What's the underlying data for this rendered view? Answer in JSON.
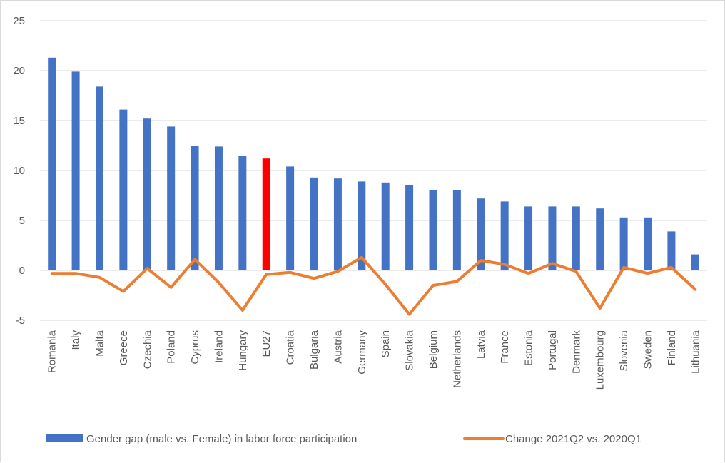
{
  "chart_data": {
    "type": "bar",
    "categories": [
      "Romania",
      "Italy",
      "Malta",
      "Greece",
      "Czechia",
      "Poland",
      "Cyprus",
      "Ireland",
      "Hungary",
      "EU27",
      "Croatia",
      "Bulgaria",
      "Austria",
      "Germany",
      "Spain",
      "Slovakia",
      "Belgium",
      "Netherlands",
      "Latvia",
      "France",
      "Estonia",
      "Portugal",
      "Denmark",
      "Luxembourg",
      "Slovenia",
      "Sweden",
      "Finland",
      "Lithuania"
    ],
    "series": [
      {
        "name": "Gender gap (male vs. Female) in labor force participation",
        "type": "bar",
        "color": "#4472c4",
        "highlight": {
          "category": "EU27",
          "color": "#ff0000"
        },
        "values": [
          21.3,
          19.9,
          18.4,
          16.1,
          15.2,
          14.4,
          12.5,
          12.4,
          11.5,
          11.2,
          10.4,
          9.3,
          9.2,
          8.9,
          8.8,
          8.5,
          8.0,
          8.0,
          7.2,
          6.9,
          6.4,
          6.4,
          6.4,
          6.2,
          5.3,
          5.3,
          3.9,
          1.6
        ]
      },
      {
        "name": "Change 2021Q2 vs. 2020Q1",
        "type": "line",
        "color": "#ed7d31",
        "values": [
          -0.3,
          -0.3,
          -0.7,
          -2.1,
          0.2,
          -1.7,
          1.1,
          -1.2,
          -4.0,
          -0.4,
          -0.2,
          -0.8,
          -0.1,
          1.3,
          -1.4,
          -4.4,
          -1.5,
          -1.1,
          1.0,
          0.6,
          -0.3,
          0.7,
          -0.1,
          -3.8,
          0.3,
          -0.3,
          0.3,
          -1.9
        ]
      }
    ],
    "ylim": [
      -5,
      25
    ],
    "yticks": [
      "-5",
      "0",
      "5",
      "10",
      "15",
      "20",
      "25"
    ],
    "grid": true,
    "legend": "bottom"
  }
}
